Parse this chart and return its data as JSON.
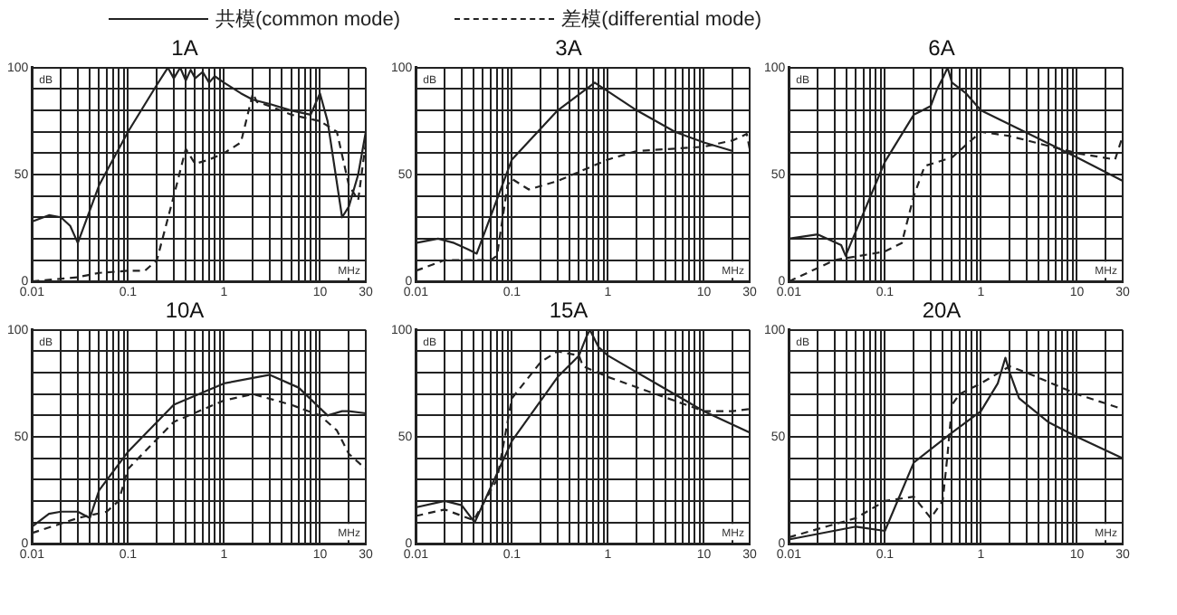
{
  "chart_data": [
    {
      "type": "line",
      "title": "1A",
      "xlabel": "MHz",
      "ylabel": "dB",
      "log": "x",
      "grid": true,
      "legend": "top",
      "xlim": [
        0.01,
        30
      ],
      "ylim": [
        0,
        100
      ],
      "xticks": [
        0.01,
        {
          "value": 0.02,
          "label": null
        },
        {
          "value": 0.03,
          "label": null
        },
        {
          "value": 0.04,
          "label": null
        },
        {
          "value": 0.05,
          "label": null
        },
        {
          "value": 0.06,
          "label": null
        },
        {
          "value": 0.07,
          "label": null
        },
        {
          "value": 0.08,
          "label": null
        },
        {
          "value": 0.09,
          "label": null
        },
        0.1,
        {
          "value": 0.2,
          "label": null
        },
        {
          "value": 0.3,
          "label": null
        },
        {
          "value": 0.4,
          "label": null
        },
        {
          "value": 0.5,
          "label": null
        },
        {
          "value": 0.6,
          "label": null
        },
        {
          "value": 0.7,
          "label": null
        },
        {
          "value": 0.8,
          "label": null
        },
        {
          "value": 0.9,
          "label": null
        },
        1,
        {
          "value": 2,
          "label": null
        },
        {
          "value": 3,
          "label": null
        },
        {
          "value": 4,
          "label": null
        },
        {
          "value": 5,
          "label": null
        },
        {
          "value": 6,
          "label": null
        },
        {
          "value": 7,
          "label": null
        },
        {
          "value": 8,
          "label": null
        },
        {
          "value": 9,
          "label": null
        },
        10,
        {
          "value": 20,
          "label": null
        },
        30
      ],
      "yticks": [
        0,
        {
          "value": 10,
          "label": null
        },
        {
          "value": 20,
          "label": null
        },
        {
          "value": 30,
          "label": null
        },
        {
          "value": 40,
          "label": null
        },
        50,
        {
          "value": 60,
          "label": null
        },
        {
          "value": 70,
          "label": null
        },
        {
          "value": 80,
          "label": null
        },
        {
          "value": 90,
          "label": null
        },
        100
      ],
      "series": [
        {
          "name": "共模(common mode)",
          "color": "#222222",
          "line_style": "solid",
          "x": [
            0.01,
            0.015,
            0.02,
            0.025,
            0.03,
            0.05,
            0.1,
            0.2,
            0.26,
            0.3,
            0.35,
            0.4,
            0.45,
            0.5,
            0.6,
            0.7,
            0.8,
            1,
            1.5,
            2,
            3,
            5,
            8,
            10,
            12,
            17,
            20,
            25,
            30
          ],
          "values": [
            28,
            31,
            30,
            26,
            18,
            45,
            70,
            92,
            100,
            95,
            100,
            94,
            99,
            95,
            98,
            93,
            96,
            93,
            88,
            85,
            83,
            80,
            78,
            88,
            75,
            30,
            35,
            50,
            70
          ]
        },
        {
          "name": "差模(differential mode)",
          "color": "#222222",
          "line_style": "dashed",
          "x": [
            0.01,
            0.03,
            0.05,
            0.1,
            0.15,
            0.2,
            0.3,
            0.4,
            0.5,
            0.7,
            1,
            1.5,
            2,
            2.2,
            3,
            5,
            10,
            15,
            20,
            25,
            30
          ],
          "values": [
            0,
            2,
            4,
            5,
            5,
            10,
            40,
            62,
            55,
            57,
            60,
            65,
            88,
            84,
            82,
            78,
            75,
            70,
            45,
            38,
            65
          ]
        }
      ]
    },
    {
      "type": "line",
      "title": "3A",
      "xlabel": "MHz",
      "ylabel": "dB",
      "log": "x",
      "grid": true,
      "xlim": [
        0.01,
        30
      ],
      "ylim": [
        0,
        100
      ],
      "xticks": [
        0.01,
        {
          "value": 0.02,
          "label": null
        },
        {
          "value": 0.03,
          "label": null
        },
        {
          "value": 0.04,
          "label": null
        },
        {
          "value": 0.05,
          "label": null
        },
        {
          "value": 0.06,
          "label": null
        },
        {
          "value": 0.07,
          "label": null
        },
        {
          "value": 0.08,
          "label": null
        },
        {
          "value": 0.09,
          "label": null
        },
        0.1,
        {
          "value": 0.2,
          "label": null
        },
        {
          "value": 0.3,
          "label": null
        },
        {
          "value": 0.4,
          "label": null
        },
        {
          "value": 0.5,
          "label": null
        },
        {
          "value": 0.6,
          "label": null
        },
        {
          "value": 0.7,
          "label": null
        },
        {
          "value": 0.8,
          "label": null
        },
        {
          "value": 0.9,
          "label": null
        },
        1,
        {
          "value": 2,
          "label": null
        },
        {
          "value": 3,
          "label": null
        },
        {
          "value": 4,
          "label": null
        },
        {
          "value": 5,
          "label": null
        },
        {
          "value": 6,
          "label": null
        },
        {
          "value": 7,
          "label": null
        },
        {
          "value": 8,
          "label": null
        },
        {
          "value": 9,
          "label": null
        },
        10,
        {
          "value": 20,
          "label": null
        },
        30
      ],
      "yticks": [
        0,
        {
          "value": 10,
          "label": null
        },
        {
          "value": 20,
          "label": null
        },
        {
          "value": 30,
          "label": null
        },
        {
          "value": 40,
          "label": null
        },
        50,
        {
          "value": 60,
          "label": null
        },
        {
          "value": 70,
          "label": null
        },
        {
          "value": 80,
          "label": null
        },
        {
          "value": 90,
          "label": null
        },
        100
      ],
      "series": [
        {
          "color": "#222222",
          "line_style": "solid",
          "x": [
            0.01,
            0.017,
            0.025,
            0.035,
            0.043,
            0.1,
            0.3,
            0.73,
            2,
            5,
            10,
            20
          ],
          "values": [
            18,
            20,
            18,
            15,
            13,
            57,
            80,
            93,
            80,
            70,
            65,
            61
          ]
        },
        {
          "color": "#222222",
          "line_style": "dashed",
          "x": [
            0.01,
            0.02,
            0.06,
            0.07,
            0.09,
            0.1,
            0.15,
            0.3,
            1,
            2,
            10,
            20,
            28,
            30
          ],
          "values": [
            5,
            10,
            10,
            12,
            45,
            48,
            43,
            47,
            57,
            61,
            63,
            66,
            69,
            62
          ]
        }
      ]
    },
    {
      "type": "line",
      "title": "6A",
      "xlabel": "MHz",
      "ylabel": "dB",
      "log": "x",
      "grid": true,
      "xlim": [
        0.01,
        30
      ],
      "ylim": [
        0,
        100
      ],
      "xticks": [
        0.01,
        {
          "value": 0.02,
          "label": null
        },
        {
          "value": 0.03,
          "label": null
        },
        {
          "value": 0.04,
          "label": null
        },
        {
          "value": 0.05,
          "label": null
        },
        {
          "value": 0.06,
          "label": null
        },
        {
          "value": 0.07,
          "label": null
        },
        {
          "value": 0.08,
          "label": null
        },
        {
          "value": 0.09,
          "label": null
        },
        0.1,
        {
          "value": 0.2,
          "label": null
        },
        {
          "value": 0.3,
          "label": null
        },
        {
          "value": 0.4,
          "label": null
        },
        {
          "value": 0.5,
          "label": null
        },
        {
          "value": 0.6,
          "label": null
        },
        {
          "value": 0.7,
          "label": null
        },
        {
          "value": 0.8,
          "label": null
        },
        {
          "value": 0.9,
          "label": null
        },
        1,
        {
          "value": 2,
          "label": null
        },
        {
          "value": 3,
          "label": null
        },
        {
          "value": 4,
          "label": null
        },
        {
          "value": 5,
          "label": null
        },
        {
          "value": 6,
          "label": null
        },
        {
          "value": 7,
          "label": null
        },
        {
          "value": 8,
          "label": null
        },
        {
          "value": 9,
          "label": null
        },
        10,
        {
          "value": 20,
          "label": null
        },
        30
      ],
      "yticks": [
        0,
        {
          "value": 10,
          "label": null
        },
        {
          "value": 20,
          "label": null
        },
        {
          "value": 30,
          "label": null
        },
        {
          "value": 40,
          "label": null
        },
        50,
        {
          "value": 60,
          "label": null
        },
        {
          "value": 70,
          "label": null
        },
        {
          "value": 80,
          "label": null
        },
        {
          "value": 90,
          "label": null
        },
        100
      ],
      "series": [
        {
          "color": "#222222",
          "line_style": "solid",
          "x": [
            0.01,
            0.02,
            0.035,
            0.039,
            0.1,
            0.2,
            0.3,
            0.35,
            0.4,
            0.45,
            0.5,
            0.7,
            1,
            10,
            30
          ],
          "values": [
            20,
            22,
            17,
            12,
            56,
            78,
            82,
            90,
            95,
            100,
            93,
            88,
            80,
            58,
            47
          ]
        },
        {
          "color": "#222222",
          "line_style": "dashed",
          "x": [
            0.01,
            0.03,
            0.1,
            0.15,
            0.2,
            0.26,
            0.5,
            1,
            2,
            10,
            25,
            30
          ],
          "values": [
            0,
            10,
            14,
            18,
            40,
            54,
            58,
            70,
            68,
            60,
            57,
            68
          ]
        }
      ]
    },
    {
      "type": "line",
      "title": "10A",
      "xlabel": "MHz",
      "ylabel": "dB",
      "log": "x",
      "grid": true,
      "xlim": [
        0.01,
        30
      ],
      "ylim": [
        0,
        100
      ],
      "xticks": [
        0.01,
        {
          "value": 0.02,
          "label": null
        },
        {
          "value": 0.03,
          "label": null
        },
        {
          "value": 0.04,
          "label": null
        },
        {
          "value": 0.05,
          "label": null
        },
        {
          "value": 0.06,
          "label": null
        },
        {
          "value": 0.07,
          "label": null
        },
        {
          "value": 0.08,
          "label": null
        },
        {
          "value": 0.09,
          "label": null
        },
        0.1,
        {
          "value": 0.2,
          "label": null
        },
        {
          "value": 0.3,
          "label": null
        },
        {
          "value": 0.4,
          "label": null
        },
        {
          "value": 0.5,
          "label": null
        },
        {
          "value": 0.6,
          "label": null
        },
        {
          "value": 0.7,
          "label": null
        },
        {
          "value": 0.8,
          "label": null
        },
        {
          "value": 0.9,
          "label": null
        },
        1,
        {
          "value": 2,
          "label": null
        },
        {
          "value": 3,
          "label": null
        },
        {
          "value": 4,
          "label": null
        },
        {
          "value": 5,
          "label": null
        },
        {
          "value": 6,
          "label": null
        },
        {
          "value": 7,
          "label": null
        },
        {
          "value": 8,
          "label": null
        },
        {
          "value": 9,
          "label": null
        },
        10,
        {
          "value": 20,
          "label": null
        },
        30
      ],
      "yticks": [
        0,
        {
          "value": 10,
          "label": null
        },
        {
          "value": 20,
          "label": null
        },
        {
          "value": 30,
          "label": null
        },
        {
          "value": 40,
          "label": null
        },
        50,
        {
          "value": 60,
          "label": null
        },
        {
          "value": 70,
          "label": null
        },
        {
          "value": 80,
          "label": null
        },
        {
          "value": 90,
          "label": null
        },
        100
      ],
      "series": [
        {
          "color": "#222222",
          "line_style": "solid",
          "x": [
            0.01,
            0.015,
            0.02,
            0.03,
            0.04,
            0.05,
            0.1,
            0.3,
            1,
            3,
            6,
            12,
            17,
            20,
            30
          ],
          "values": [
            8,
            14,
            15,
            15,
            12,
            25,
            43,
            65,
            75,
            79,
            73,
            60,
            62,
            62,
            61
          ]
        },
        {
          "color": "#222222",
          "line_style": "dashed",
          "x": [
            0.01,
            0.03,
            0.06,
            0.08,
            0.1,
            0.3,
            1,
            2,
            5,
            10,
            15,
            20,
            30
          ],
          "values": [
            5,
            12,
            15,
            20,
            35,
            57,
            67,
            70,
            65,
            60,
            53,
            42,
            35
          ]
        }
      ]
    },
    {
      "type": "line",
      "title": "15A",
      "xlabel": "MHz",
      "ylabel": "dB",
      "log": "x",
      "grid": true,
      "xlim": [
        0.01,
        30
      ],
      "ylim": [
        0,
        100
      ],
      "xticks": [
        0.01,
        {
          "value": 0.02,
          "label": null
        },
        {
          "value": 0.03,
          "label": null
        },
        {
          "value": 0.04,
          "label": null
        },
        {
          "value": 0.05,
          "label": null
        },
        {
          "value": 0.06,
          "label": null
        },
        {
          "value": 0.07,
          "label": null
        },
        {
          "value": 0.08,
          "label": null
        },
        {
          "value": 0.09,
          "label": null
        },
        0.1,
        {
          "value": 0.2,
          "label": null
        },
        {
          "value": 0.3,
          "label": null
        },
        {
          "value": 0.4,
          "label": null
        },
        {
          "value": 0.5,
          "label": null
        },
        {
          "value": 0.6,
          "label": null
        },
        {
          "value": 0.7,
          "label": null
        },
        {
          "value": 0.8,
          "label": null
        },
        {
          "value": 0.9,
          "label": null
        },
        1,
        {
          "value": 2,
          "label": null
        },
        {
          "value": 3,
          "label": null
        },
        {
          "value": 4,
          "label": null
        },
        {
          "value": 5,
          "label": null
        },
        {
          "value": 6,
          "label": null
        },
        {
          "value": 7,
          "label": null
        },
        {
          "value": 8,
          "label": null
        },
        {
          "value": 9,
          "label": null
        },
        10,
        {
          "value": 20,
          "label": null
        },
        30
      ],
      "yticks": [
        0,
        {
          "value": 10,
          "label": null
        },
        {
          "value": 20,
          "label": null
        },
        {
          "value": 30,
          "label": null
        },
        {
          "value": 40,
          "label": null
        },
        50,
        {
          "value": 60,
          "label": null
        },
        {
          "value": 70,
          "label": null
        },
        {
          "value": 80,
          "label": null
        },
        {
          "value": 90,
          "label": null
        },
        100
      ],
      "series": [
        {
          "color": "#222222",
          "line_style": "solid",
          "x": [
            0.01,
            0.02,
            0.03,
            0.041,
            0.1,
            0.3,
            0.5,
            0.6,
            0.65,
            0.8,
            1,
            10,
            30
          ],
          "values": [
            17,
            20,
            18,
            10,
            48,
            78,
            88,
            97,
            100,
            92,
            88,
            62,
            52
          ]
        },
        {
          "color": "#222222",
          "line_style": "dashed",
          "x": [
            0.01,
            0.02,
            0.04,
            0.07,
            0.1,
            0.2,
            0.3,
            0.5,
            0.55,
            1,
            10,
            20,
            30
          ],
          "values": [
            13,
            16,
            11,
            30,
            68,
            85,
            90,
            88,
            83,
            78,
            62,
            62,
            63
          ]
        }
      ]
    },
    {
      "type": "line",
      "title": "20A",
      "xlabel": "MHz",
      "ylabel": "dB",
      "log": "x",
      "grid": true,
      "xlim": [
        0.01,
        30
      ],
      "ylim": [
        0,
        100
      ],
      "xticks": [
        0.01,
        {
          "value": 0.02,
          "label": null
        },
        {
          "value": 0.03,
          "label": null
        },
        {
          "value": 0.04,
          "label": null
        },
        {
          "value": 0.05,
          "label": null
        },
        {
          "value": 0.06,
          "label": null
        },
        {
          "value": 0.07,
          "label": null
        },
        {
          "value": 0.08,
          "label": null
        },
        {
          "value": 0.09,
          "label": null
        },
        0.1,
        {
          "value": 0.2,
          "label": null
        },
        {
          "value": 0.3,
          "label": null
        },
        {
          "value": 0.4,
          "label": null
        },
        {
          "value": 0.5,
          "label": null
        },
        {
          "value": 0.6,
          "label": null
        },
        {
          "value": 0.7,
          "label": null
        },
        {
          "value": 0.8,
          "label": null
        },
        {
          "value": 0.9,
          "label": null
        },
        1,
        {
          "value": 2,
          "label": null
        },
        {
          "value": 3,
          "label": null
        },
        {
          "value": 4,
          "label": null
        },
        {
          "value": 5,
          "label": null
        },
        {
          "value": 6,
          "label": null
        },
        {
          "value": 7,
          "label": null
        },
        {
          "value": 8,
          "label": null
        },
        {
          "value": 9,
          "label": null
        },
        10,
        {
          "value": 20,
          "label": null
        },
        30
      ],
      "yticks": [
        0,
        {
          "value": 10,
          "label": null
        },
        {
          "value": 20,
          "label": null
        },
        {
          "value": 30,
          "label": null
        },
        {
          "value": 40,
          "label": null
        },
        50,
        {
          "value": 60,
          "label": null
        },
        {
          "value": 70,
          "label": null
        },
        {
          "value": 80,
          "label": null
        },
        {
          "value": 90,
          "label": null
        },
        100
      ],
      "series": [
        {
          "color": "#222222",
          "line_style": "solid",
          "x": [
            0.01,
            0.05,
            0.1,
            0.2,
            0.5,
            1,
            1.5,
            1.8,
            2,
            2.5,
            5,
            10,
            30
          ],
          "values": [
            2,
            8,
            6,
            38,
            52,
            62,
            75,
            87,
            80,
            68,
            57,
            50,
            40
          ]
        },
        {
          "color": "#222222",
          "line_style": "dashed",
          "x": [
            0.01,
            0.05,
            0.1,
            0.2,
            0.3,
            0.4,
            0.45,
            0.5,
            0.6,
            1,
            2,
            3,
            10,
            30
          ],
          "values": [
            3,
            12,
            20,
            22,
            12,
            20,
            42,
            65,
            70,
            75,
            83,
            80,
            70,
            63
          ]
        }
      ]
    }
  ]
}
